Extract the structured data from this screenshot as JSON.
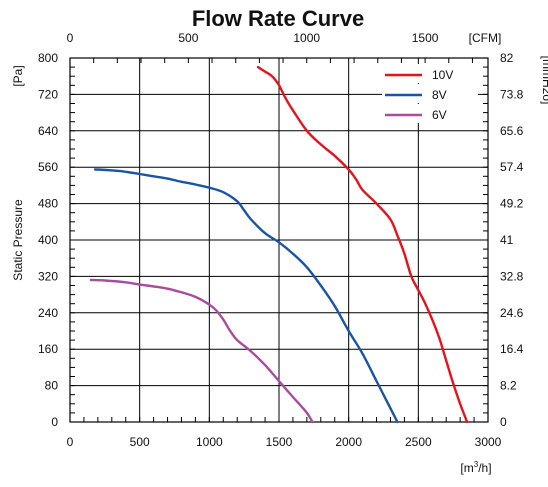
{
  "chart_data": {
    "type": "line",
    "title": "Flow Rate Curve",
    "xlabel": "[m³/h]",
    "x_unit_base": "[m",
    "x_unit_sup": "3",
    "x_unit_tail": "/h]",
    "ylabel": "Static Pressure",
    "y_unit": "[Pa]",
    "top_unit": "[CFM]",
    "right_unit": "[mmH2o]",
    "xlim": [
      0,
      3000
    ],
    "ylim": [
      0,
      800
    ],
    "top_xlim": [
      0,
      1765.7
    ],
    "right_ylim": [
      0,
      82
    ],
    "x_ticks": [
      "0",
      "500",
      "1000",
      "1500",
      "2000",
      "2500",
      "3000"
    ],
    "y_ticks": [
      "0",
      "80",
      "160",
      "240",
      "320",
      "400",
      "480",
      "560",
      "640",
      "720",
      "800"
    ],
    "top_ticks": [
      "0",
      "500",
      "1000",
      "1500"
    ],
    "right_ticks": [
      "0",
      "8.2",
      "16.4",
      "24.6",
      "32.8",
      "41",
      "49.2",
      "57.4",
      "65.6",
      "73.8",
      "82"
    ],
    "grid": true,
    "legend_position": "top-right",
    "series": [
      {
        "name": "10V",
        "color": "#e3141c",
        "x": [
          1350,
          1400,
          1450,
          1500,
          1550,
          1600,
          1700,
          1800,
          1900,
          2000,
          2050,
          2100,
          2200,
          2300,
          2350,
          2400,
          2450,
          2500,
          2550,
          2600,
          2650,
          2700,
          2750,
          2800,
          2850
        ],
        "y": [
          780,
          770,
          760,
          740,
          710,
          685,
          640,
          610,
          585,
          555,
          535,
          510,
          480,
          445,
          410,
          370,
          320,
          290,
          260,
          225,
          185,
          135,
          85,
          40,
          0
        ]
      },
      {
        "name": "8V",
        "color": "#1a55a4",
        "x": [
          180,
          300,
          400,
          500,
          600,
          700,
          800,
          900,
          1000,
          1100,
          1200,
          1250,
          1300,
          1400,
          1500,
          1600,
          1700,
          1800,
          1900,
          2000,
          2100,
          2200,
          2300,
          2350
        ],
        "y": [
          555,
          553,
          550,
          545,
          540,
          535,
          528,
          522,
          515,
          505,
          485,
          465,
          445,
          415,
          395,
          370,
          340,
          300,
          255,
          200,
          150,
          90,
          30,
          0
        ]
      },
      {
        "name": "6V",
        "color": "#a84c9e",
        "x": [
          150,
          250,
          400,
          500,
          600,
          700,
          800,
          900,
          1000,
          1050,
          1100,
          1150,
          1200,
          1300,
          1400,
          1500,
          1600,
          1700,
          1740
        ],
        "y": [
          312,
          311,
          307,
          302,
          298,
          293,
          285,
          275,
          258,
          245,
          225,
          200,
          180,
          155,
          125,
          90,
          55,
          20,
          0
        ]
      }
    ]
  }
}
